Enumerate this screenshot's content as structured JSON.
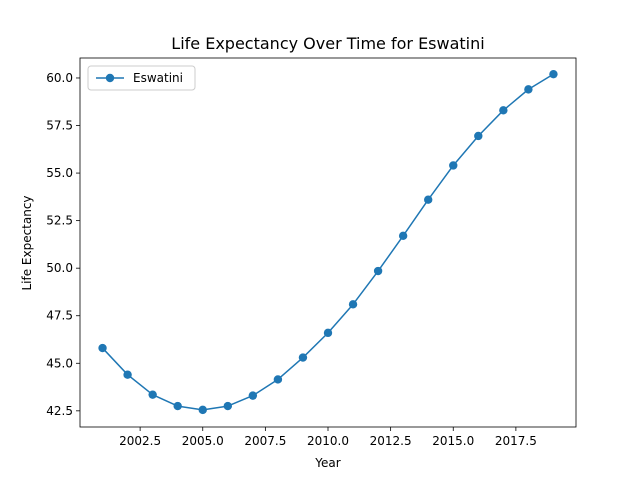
{
  "chart_data": {
    "type": "line",
    "title": "Life Expectancy Over Time for Eswatini",
    "xlabel": "Year",
    "ylabel": "Life Expectancy",
    "xlim": [
      2000.1,
      2019.9
    ],
    "ylim": [
      41.65,
      61.05
    ],
    "x_ticks": [
      2002.5,
      2005.0,
      2007.5,
      2010.0,
      2012.5,
      2015.0,
      2017.5
    ],
    "x_tick_labels": [
      "2002.5",
      "2005.0",
      "2007.5",
      "2010.0",
      "2012.5",
      "2015.0",
      "2017.5"
    ],
    "y_ticks": [
      42.5,
      45.0,
      47.5,
      50.0,
      52.5,
      55.0,
      57.5,
      60.0
    ],
    "y_tick_labels": [
      "42.5",
      "45.0",
      "47.5",
      "50.0",
      "52.5",
      "55.0",
      "57.5",
      "60.0"
    ],
    "grid": false,
    "legend_position": "top-left",
    "series": [
      {
        "name": "Eswatini",
        "color": "#1f77b4",
        "marker": "circle",
        "x": [
          2001,
          2002,
          2003,
          2004,
          2005,
          2006,
          2007,
          2008,
          2009,
          2010,
          2011,
          2012,
          2013,
          2014,
          2015,
          2016,
          2017,
          2018,
          2019
        ],
        "values": [
          45.8,
          44.4,
          43.35,
          42.75,
          42.55,
          42.75,
          43.3,
          44.15,
          45.3,
          46.6,
          48.1,
          49.85,
          51.7,
          53.6,
          55.4,
          56.95,
          58.3,
          59.4,
          60.2
        ]
      }
    ]
  }
}
